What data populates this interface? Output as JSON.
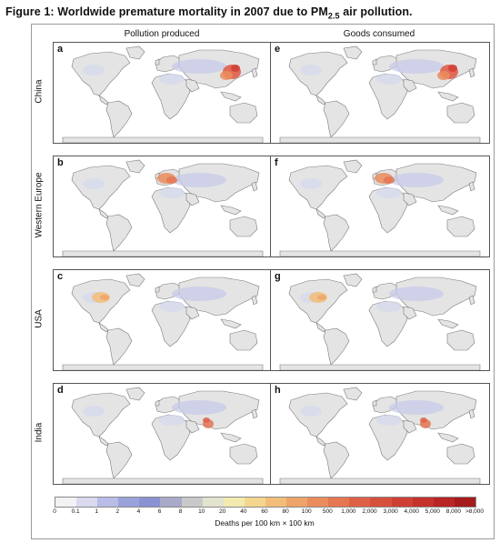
{
  "figure": {
    "title_prefix": "Figure 1: Worldwide premature mortality in 2007 due to PM",
    "title_sub": "2.5",
    "title_suffix": " air pollution."
  },
  "columns": [
    "Pollution produced",
    "Goods consumed"
  ],
  "rows": [
    {
      "label": "China",
      "letters": [
        "a",
        "e"
      ],
      "hotspot": "china"
    },
    {
      "label": "Western Europe",
      "letters": [
        "b",
        "f"
      ],
      "hotspot": "europe"
    },
    {
      "label": "USA",
      "letters": [
        "c",
        "g"
      ],
      "hotspot": "usa"
    },
    {
      "label": "India",
      "letters": [
        "d",
        "h"
      ],
      "hotspot": "india"
    }
  ],
  "legend": {
    "title": "Deaths per 100 km × 100 km",
    "ticks": [
      "0",
      "0.1",
      "1",
      "2",
      "4",
      "6",
      "8",
      "10",
      "20",
      "40",
      "60",
      "80",
      "100",
      "500",
      "1,000",
      "2,000",
      "3,000",
      "4,000",
      "5,000",
      "8,000",
      ">8,000"
    ],
    "colors": [
      "#f2f2f2",
      "#d9d9ef",
      "#b8bce6",
      "#9aa2dc",
      "#8a92d3",
      "#a9a9c9",
      "#c9c9c9",
      "#e3e3cf",
      "#f2eab0",
      "#f4d68e",
      "#f2bd78",
      "#eea36a",
      "#ea8c5e",
      "#e47652",
      "#de6147",
      "#d6503c",
      "#cf4034",
      "#c5322c",
      "#b92424",
      "#a51b1b"
    ]
  }
}
